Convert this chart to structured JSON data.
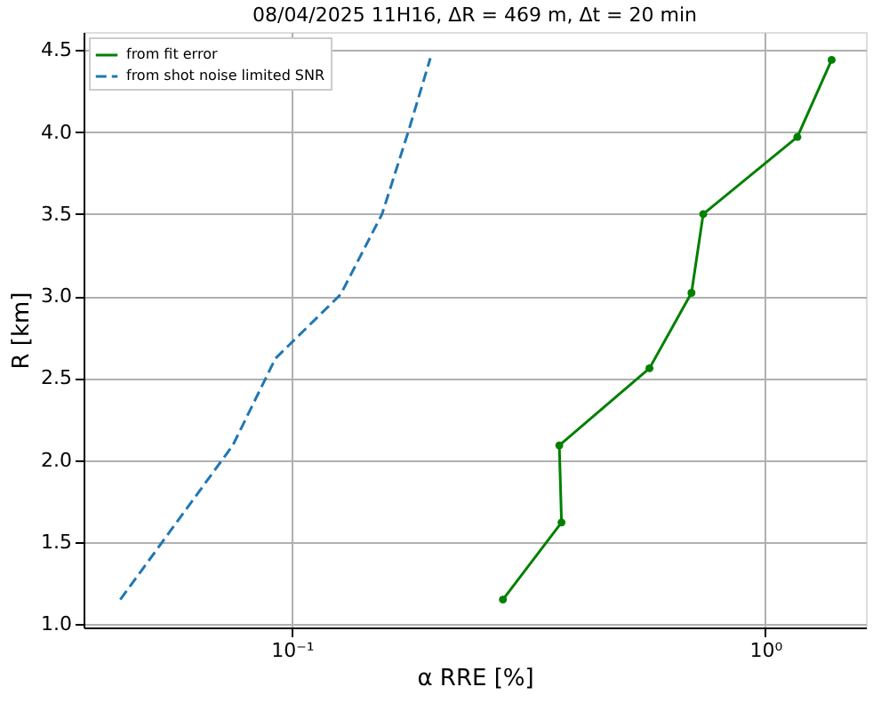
{
  "chart_data": {
    "type": "line",
    "title": "08/04/2025 11H16, ΔR = 469 m, Δt = 20 min",
    "xlabel": "α RRE [%]",
    "ylabel": "R [km]",
    "series": [
      {
        "name": "from fit error",
        "color": "#008000",
        "marker": "circle",
        "line_style": "solid",
        "x": [
          0.279,
          0.371,
          0.367,
          0.569,
          0.698,
          0.739,
          1.168,
          1.38
        ],
        "values": [
          1.15,
          1.62,
          2.09,
          2.56,
          3.02,
          3.5,
          3.97,
          4.44
        ]
      },
      {
        "name": "from shot noise limited SNR",
        "color": "#1f77b4",
        "marker": "none",
        "line_style": "dashed",
        "x": [
          0.0434,
          0.075,
          0.0923,
          0.1267,
          0.155,
          0.176,
          0.196
        ],
        "values": [
          1.15,
          2.09,
          2.62,
          3.01,
          3.5,
          4.0,
          4.45
        ]
      }
    ],
    "log": "x",
    "xlim": [
      0.0363,
      1.63
    ],
    "ylim": [
      0.98,
      4.61
    ],
    "xticks": [
      {
        "value": 0.1,
        "label": "10⁻¹"
      },
      {
        "value": 1,
        "label": "10⁰"
      }
    ],
    "yticks": [
      {
        "value": 1,
        "label": "1.0"
      },
      {
        "value": 1.5,
        "label": "1.5"
      },
      {
        "value": 2,
        "label": "2.0"
      },
      {
        "value": 2.5,
        "label": "2.5"
      },
      {
        "value": 3,
        "label": "3.0"
      },
      {
        "value": 3.5,
        "label": "3.5"
      },
      {
        "value": 4,
        "label": "4.0"
      },
      {
        "value": 4.5,
        "label": "4.5"
      }
    ],
    "grid": true,
    "legend": "top left"
  }
}
